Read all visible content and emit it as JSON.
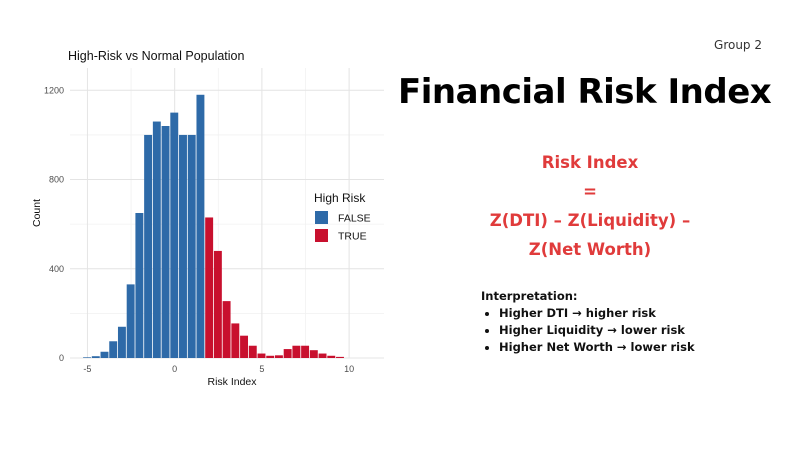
{
  "slide": {
    "group_label": "Group 2",
    "title": "Financial Risk Index",
    "formula_lines": [
      "Risk Index",
      "=",
      "Z(DTI) – Z(Liquidity) –",
      "Z(Net Worth)"
    ],
    "interpretation_heading": "Interpretation:",
    "interpretation_items": [
      "Higher DTI → higher risk",
      "Higher Liquidity → lower risk",
      "Higher Net Worth → lower risk"
    ]
  },
  "chart_data": {
    "type": "bar",
    "title": "High-Risk vs Normal Population",
    "xlabel": "Risk Index",
    "ylabel": "Count",
    "xlim": [
      -6,
      12
    ],
    "ylim": [
      0,
      1300
    ],
    "x_ticks": [
      -5,
      0,
      5,
      10
    ],
    "y_ticks": [
      0,
      400,
      800,
      1200
    ],
    "grid": true,
    "legend": {
      "title": "High Risk",
      "position": "right"
    },
    "bin_width": 0.5,
    "series": [
      {
        "name": "FALSE",
        "color": "#2e6aa8",
        "x": [
          -5.0,
          -4.5,
          -4.0,
          -3.5,
          -3.0,
          -2.5,
          -2.0,
          -1.5,
          -1.0,
          -0.5,
          0.0,
          0.5,
          1.0,
          1.5
        ],
        "values": [
          3,
          8,
          28,
          75,
          140,
          330,
          650,
          1000,
          1060,
          1040,
          1100,
          1000,
          1000,
          1180
        ]
      },
      {
        "name": "TRUE",
        "color": "#c8102e",
        "x": [
          2.0,
          2.5,
          3.0,
          3.5,
          4.0,
          4.5,
          5.0,
          5.5,
          6.0,
          6.5,
          7.0,
          7.5,
          8.0,
          8.5,
          9.0,
          9.5
        ],
        "values": [
          630,
          480,
          255,
          155,
          100,
          55,
          20,
          10,
          12,
          40,
          55,
          55,
          35,
          20,
          10,
          5
        ]
      }
    ]
  }
}
